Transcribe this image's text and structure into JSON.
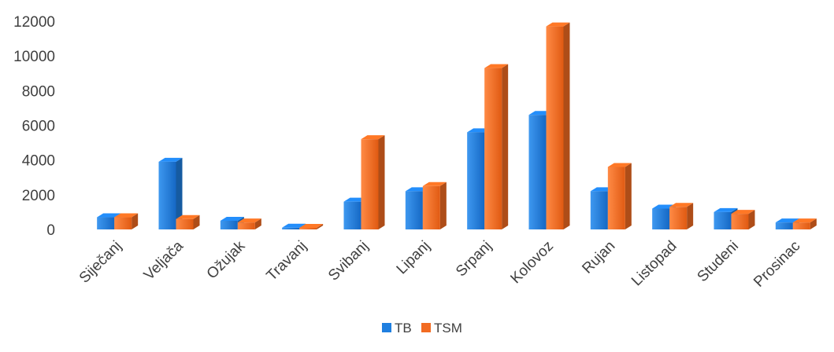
{
  "chart_data": {
    "type": "bar",
    "title": "",
    "xlabel": "",
    "ylabel": "",
    "ylim": [
      0,
      12000
    ],
    "yticks": [
      0,
      2000,
      4000,
      6000,
      8000,
      10000,
      12000
    ],
    "grid": false,
    "legend_position": "bottom",
    "categories": [
      "Siječanj",
      "Veljača",
      "Ožujak",
      "Travanj",
      "Svibanj",
      "Lipanj",
      "Srpanj",
      "Kolovoz",
      "Rujan",
      "Listopad",
      "Studeni",
      "Prosinac"
    ],
    "series": [
      {
        "name": "TB",
        "color": "#1f7fe0",
        "values": [
          700,
          3900,
          500,
          100,
          1600,
          2200,
          5600,
          6600,
          2200,
          1200,
          1000,
          400
        ]
      },
      {
        "name": "TSM",
        "color": "#f26b22",
        "values": [
          700,
          600,
          400,
          50,
          5200,
          2500,
          9300,
          11700,
          3600,
          1300,
          900,
          400
        ]
      }
    ]
  }
}
